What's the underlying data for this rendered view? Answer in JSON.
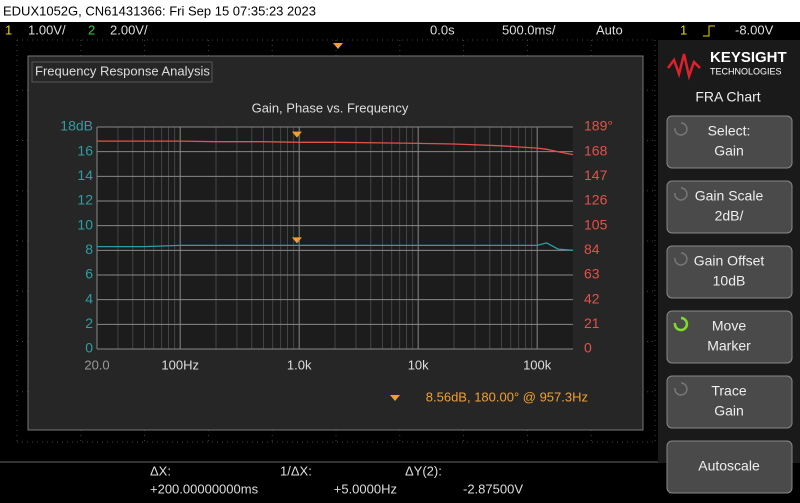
{
  "header": {
    "title": "EDUX1052G, CN61431366: Fri Sep 15 07:35:23 2023"
  },
  "status_bar": {
    "ch1_number": "1",
    "ch1_scale": "1.00V/",
    "ch2_number": "2",
    "ch2_scale": "2.00V/",
    "delay": "0.0s",
    "timebase": "500.0ms/",
    "trigger_mode": "Auto",
    "trigger_source": "1",
    "trigger_level": "-8.00V"
  },
  "window": {
    "title": "Frequency Response Analysis"
  },
  "chart_data": {
    "type": "line",
    "title": "Gain, Phase vs. Frequency",
    "xscale": "log",
    "x": [
      20,
      50,
      100,
      200,
      500,
      1000,
      2000,
      5000,
      10000,
      20000,
      50000,
      100000,
      120000,
      150000,
      200000
    ],
    "series": [
      {
        "name": "Gain",
        "color": "#2f9ea3",
        "values": [
          8.3,
          8.3,
          8.4,
          8.4,
          8.4,
          8.4,
          8.4,
          8.4,
          8.4,
          8.4,
          8.4,
          8.4,
          8.6,
          8.1,
          8.0
        ]
      },
      {
        "name": "Phase",
        "color": "#e0524a",
        "axis": "y2",
        "values": [
          177,
          177,
          177,
          176.5,
          176.5,
          176,
          176,
          175.5,
          175,
          174.5,
          173,
          171,
          170,
          168,
          165.5
        ]
      }
    ],
    "xlim": [
      20,
      200000
    ],
    "xticks": [
      {
        "value": 20,
        "label": "20.0"
      },
      {
        "value": 100,
        "label": "100Hz"
      },
      {
        "value": 1000,
        "label": "1.0k"
      },
      {
        "value": 10000,
        "label": "10k"
      },
      {
        "value": 100000,
        "label": "100k"
      }
    ],
    "ylim": [
      0,
      18
    ],
    "yticks": [
      0,
      2,
      4,
      6,
      8,
      10,
      12,
      14,
      16,
      {
        "value": 18,
        "label": "18dB"
      }
    ],
    "y2lim": [
      0,
      189
    ],
    "y2ticks": [
      0,
      21,
      42,
      63,
      84,
      105,
      126,
      147,
      168,
      {
        "value": 189,
        "label": "189°"
      }
    ],
    "grid": true,
    "marker": {
      "x": 957.3,
      "gain": 8.56,
      "phase": 180.0,
      "label": "8.56dB, 180.00° @ 957.3Hz"
    }
  },
  "logo": {
    "brand": "KEYSIGHT",
    "sub": "TECHNOLOGIES"
  },
  "menu": {
    "title": "FRA Chart",
    "softkeys": [
      [
        "Select:",
        "Gain"
      ],
      [
        "Gain Scale",
        "2dB/"
      ],
      [
        "Gain Offset",
        "10dB"
      ],
      [
        "Move",
        "Marker"
      ],
      [
        "Trace",
        "Gain"
      ],
      [
        "Autoscale"
      ]
    ]
  },
  "cursors": {
    "dx_label": "ΔX:",
    "dx": "+200.00000000ms",
    "inv_label": "1/ΔX:",
    "inv": "+5.0000Hz",
    "dy_label": "ΔY(2):",
    "dy": "-2.87500V"
  }
}
